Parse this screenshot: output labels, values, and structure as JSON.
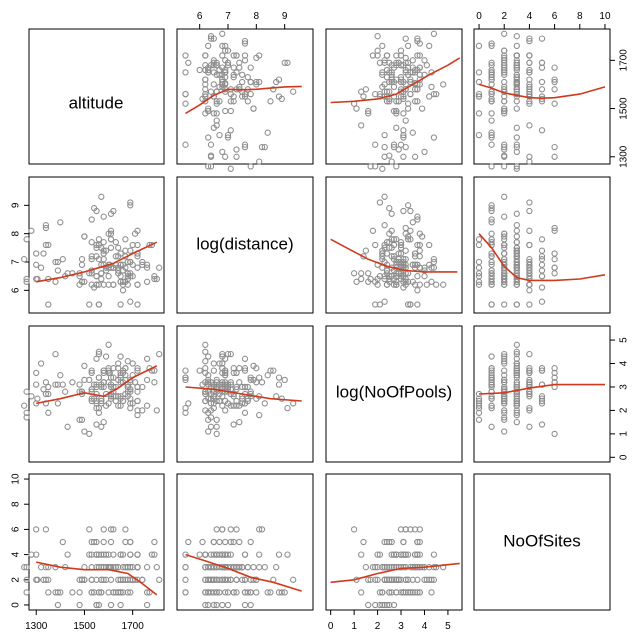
{
  "chart_data": {
    "type": "scatter",
    "subtype": "scatterplot-matrix",
    "variables": [
      "altitude",
      "log(distance)",
      "log(NoOfPools)",
      "NoOfSites"
    ],
    "point_color": "#8f8f8f",
    "smoother_color": "#d03a1c",
    "axes": {
      "altitude": {
        "range": [
          1270,
          1830
        ],
        "ticks": [
          1300,
          1500,
          1700
        ],
        "tick_labels": [
          "1300",
          "1500",
          "1700"
        ]
      },
      "log(distance)": {
        "range": [
          5.2,
          10.0
        ],
        "ticks": [
          6,
          7,
          8,
          9
        ],
        "tick_labels": [
          "6",
          "7",
          "8",
          "9"
        ]
      },
      "log(NoOfPools)": {
        "range": [
          -0.2,
          5.6
        ],
        "ticks": [
          0,
          1,
          2,
          3,
          4,
          5
        ],
        "tick_labels": [
          "0",
          "1",
          "2",
          "3",
          "4",
          "5"
        ]
      },
      "NoOfSites": {
        "range": [
          -0.4,
          10.4
        ],
        "ticks": [
          0,
          2,
          4,
          6,
          8,
          10
        ],
        "tick_labels": [
          "0",
          "2",
          "4",
          "6",
          "8",
          "10"
        ]
      }
    },
    "tick_placement": {
      "top": [
        "log(distance)",
        "NoOfSites"
      ],
      "bottom": [
        "altitude",
        "log(NoOfPools)"
      ],
      "left": [
        "log(distance)",
        "NoOfSites"
      ],
      "right": [
        "altitude",
        "log(NoOfPools)"
      ]
    },
    "smoothers": [
      {
        "x": "log(distance)",
        "y": "altitude",
        "points": [
          [
            5.5,
            1480
          ],
          [
            6.0,
            1515
          ],
          [
            6.5,
            1555
          ],
          [
            7.0,
            1580
          ],
          [
            7.5,
            1578
          ],
          [
            8.0,
            1580
          ],
          [
            8.5,
            1585
          ],
          [
            9.0,
            1590
          ],
          [
            9.6,
            1592
          ]
        ]
      },
      {
        "x": "log(NoOfPools)",
        "y": "altitude",
        "points": [
          [
            0.0,
            1525
          ],
          [
            1.0,
            1530
          ],
          [
            2.0,
            1540
          ],
          [
            2.8,
            1560
          ],
          [
            3.5,
            1600
          ],
          [
            4.2,
            1640
          ],
          [
            5.0,
            1680
          ],
          [
            5.5,
            1710
          ]
        ]
      },
      {
        "x": "NoOfSites",
        "y": "altitude",
        "points": [
          [
            0,
            1600
          ],
          [
            1,
            1585
          ],
          [
            2,
            1565
          ],
          [
            3,
            1555
          ],
          [
            4,
            1545
          ],
          [
            5,
            1543
          ],
          [
            6,
            1545
          ],
          [
            8,
            1560
          ],
          [
            10,
            1590
          ]
        ]
      },
      {
        "x": "altitude",
        "y": "log(distance)",
        "points": [
          [
            1300,
            6.3
          ],
          [
            1400,
            6.45
          ],
          [
            1500,
            6.65
          ],
          [
            1560,
            6.8
          ],
          [
            1620,
            6.95
          ],
          [
            1700,
            7.3
          ],
          [
            1800,
            7.7
          ]
        ]
      },
      {
        "x": "log(NoOfPools)",
        "y": "log(distance)",
        "points": [
          [
            0.0,
            7.8
          ],
          [
            0.8,
            7.45
          ],
          [
            1.6,
            7.1
          ],
          [
            2.4,
            6.85
          ],
          [
            3.2,
            6.7
          ],
          [
            4.0,
            6.65
          ],
          [
            5.0,
            6.65
          ],
          [
            5.4,
            6.65
          ]
        ]
      },
      {
        "x": "NoOfSites",
        "y": "log(distance)",
        "points": [
          [
            0,
            8.0
          ],
          [
            1,
            7.5
          ],
          [
            2,
            6.85
          ],
          [
            3,
            6.45
          ],
          [
            4,
            6.35
          ],
          [
            6,
            6.35
          ],
          [
            8,
            6.4
          ],
          [
            10,
            6.55
          ]
        ]
      },
      {
        "x": "altitude",
        "y": "log(NoOfPools)",
        "points": [
          [
            1300,
            2.3
          ],
          [
            1400,
            2.5
          ],
          [
            1500,
            2.75
          ],
          [
            1580,
            2.6
          ],
          [
            1640,
            2.95
          ],
          [
            1700,
            3.4
          ],
          [
            1800,
            3.9
          ]
        ]
      },
      {
        "x": "log(distance)",
        "y": "log(NoOfPools)",
        "points": [
          [
            5.5,
            3.0
          ],
          [
            6.5,
            2.9
          ],
          [
            7.5,
            2.7
          ],
          [
            8.5,
            2.5
          ],
          [
            9.6,
            2.4
          ]
        ]
      },
      {
        "x": "NoOfSites",
        "y": "log(NoOfPools)",
        "points": [
          [
            0,
            2.7
          ],
          [
            2,
            2.75
          ],
          [
            4,
            2.95
          ],
          [
            6,
            3.1
          ],
          [
            8,
            3.1
          ],
          [
            10,
            3.1
          ]
        ]
      },
      {
        "x": "altitude",
        "y": "NoOfSites",
        "points": [
          [
            1300,
            3.4
          ],
          [
            1400,
            3.0
          ],
          [
            1500,
            2.8
          ],
          [
            1600,
            2.8
          ],
          [
            1680,
            2.5
          ],
          [
            1740,
            1.7
          ],
          [
            1800,
            0.8
          ]
        ]
      },
      {
        "x": "log(distance)",
        "y": "NoOfSites",
        "points": [
          [
            5.5,
            4.0
          ],
          [
            6.2,
            3.5
          ],
          [
            7.0,
            2.9
          ],
          [
            7.8,
            2.2
          ],
          [
            8.6,
            1.8
          ],
          [
            9.6,
            1.1
          ]
        ]
      },
      {
        "x": "log(NoOfPools)",
        "y": "NoOfSites",
        "points": [
          [
            0.0,
            1.8
          ],
          [
            1.0,
            2.0
          ],
          [
            2.0,
            2.5
          ],
          [
            3.0,
            2.9
          ],
          [
            4.0,
            3.0
          ],
          [
            5.0,
            3.2
          ],
          [
            5.5,
            3.3
          ]
        ]
      }
    ],
    "scatter_points": [
      [
        1605,
        6.9,
        3.6,
        3
      ],
      [
        1600,
        6.8,
        3.2,
        3
      ],
      [
        1305,
        6.4,
        2.5,
        2
      ],
      [
        1340,
        8.2,
        3.2,
        6
      ],
      [
        1480,
        6.6,
        1.6,
        0
      ],
      [
        1260,
        7.8,
        2.8,
        1
      ],
      [
        1580,
        7.7,
        3.0,
        3
      ],
      [
        1660,
        6.7,
        2.4,
        2
      ],
      [
        1560,
        5.5,
        2.1,
        1
      ],
      [
        1640,
        7.2,
        2.2,
        1
      ],
      [
        1520,
        6.6,
        1.0,
        6
      ],
      [
        1720,
        7.6,
        3.0,
        4
      ],
      [
        1420,
        6.5,
        2.8,
        3
      ],
      [
        1760,
        6.3,
        3.3,
        1
      ],
      [
        1570,
        9.3,
        2.3,
        2
      ],
      [
        1650,
        6.9,
        3.2,
        4
      ],
      [
        1530,
        8.5,
        3.7,
        1
      ],
      [
        1480,
        6.2,
        2.8,
        2
      ],
      [
        1610,
        8.0,
        2.5,
        2
      ],
      [
        1550,
        7.6,
        4.2,
        2
      ],
      [
        1390,
        7.0,
        2.3,
        0
      ],
      [
        1700,
        6.5,
        4.0,
        2
      ],
      [
        1810,
        6.8,
        4.4,
        2
      ],
      [
        1720,
        7.2,
        3.8,
        3
      ],
      [
        1690,
        6.6,
        2.9,
        2
      ],
      [
        1280,
        8.1,
        2.6,
        4
      ],
      [
        1650,
        5.5,
        3.4,
        1
      ],
      [
        1580,
        7.4,
        1.5,
        3
      ],
      [
        1540,
        6.1,
        3.1,
        5
      ],
      [
        1620,
        6.8,
        3.0,
        6
      ],
      [
        1500,
        6.3,
        1.1,
        2
      ],
      [
        1250,
        7.1,
        2.2,
        3
      ],
      [
        1550,
        6.5,
        2.1,
        0
      ],
      [
        1690,
        5.6,
        2.3,
        5
      ],
      [
        1800,
        6.4,
        2.0,
        3
      ],
      [
        1610,
        6.8,
        3.1,
        3
      ],
      [
        1340,
        7.6,
        2.7,
        2
      ],
      [
        1610,
        7.8,
        2.7,
        0
      ],
      [
        1600,
        6.9,
        3.7,
        3
      ],
      [
        1670,
        7.8,
        3.3,
        2
      ],
      [
        1570,
        6.6,
        3.0,
        4
      ],
      [
        1550,
        7.5,
        2.3,
        3
      ],
      [
        1630,
        7.7,
        2.4,
        3
      ],
      [
        1610,
        8.1,
        3.4,
        6
      ],
      [
        1380,
        6.3,
        3.1,
        1
      ],
      [
        1780,
        7.6,
        3.7,
        4
      ],
      [
        1490,
        6.9,
        2.8,
        2
      ],
      [
        1760,
        6.9,
        4.2,
        3
      ],
      [
        1700,
        6.9,
        3.5,
        3
      ],
      [
        1410,
        7.1,
        3.1,
        5
      ],
      [
        1550,
        8.8,
        3.1,
        4
      ],
      [
        1560,
        7.1,
        4.4,
        4
      ],
      [
        1490,
        7.1,
        2.7,
        2
      ],
      [
        1580,
        6.9,
        3.7,
        5
      ],
      [
        1590,
        6.7,
        2.7,
        4
      ],
      [
        1590,
        7.4,
        2.2,
        3
      ],
      [
        1600,
        6.2,
        4.8,
        3
      ],
      [
        1530,
        7.1,
        2.9,
        2
      ],
      [
        1570,
        7.5,
        2.5,
        3
      ],
      [
        1300,
        6.9,
        3.1,
        4
      ],
      [
        1670,
        6.8,
        3.8,
        6
      ],
      [
        1640,
        6.8,
        3.8,
        3
      ],
      [
        1700,
        7.6,
        2.3,
        2
      ],
      [
        1660,
        6.3,
        3.2,
        2
      ],
      [
        1520,
        5.5,
        3.3,
        4
      ],
      [
        1650,
        6.5,
        2.6,
        2
      ],
      [
        1450,
        6.6,
        3.2,
        1
      ],
      [
        1570,
        6.9,
        3.1,
        1
      ],
      [
        1650,
        7.3,
        2.2,
        1
      ],
      [
        1680,
        6.6,
        3.0,
        3
      ],
      [
        1720,
        7.3,
        2.4,
        2
      ],
      [
        1320,
        6.8,
        4.0,
        3
      ],
      [
        1660,
        6.0,
        3.7,
        4
      ],
      [
        1350,
        7.6,
        3.0,
        1
      ],
      [
        1680,
        6.5,
        2.6,
        2
      ],
      [
        1560,
        7.6,
        1.9,
        0
      ],
      [
        1540,
        8.9,
        2.5,
        1
      ],
      [
        1550,
        7.2,
        1.4,
        5
      ],
      [
        1610,
        7.5,
        3.0,
        3
      ],
      [
        1400,
        8.4,
        3.5,
        1
      ],
      [
        1660,
        6.9,
        2.4,
        3
      ],
      [
        1580,
        7.3,
        3.6,
        3
      ],
      [
        1340,
        8.3,
        2.3,
        3
      ],
      [
        1690,
        9.1,
        2.1,
        4
      ],
      [
        1650,
        6.3,
        2.5,
        0
      ],
      [
        1690,
        9.0,
        3.3,
        1
      ],
      [
        1350,
        6.4,
        2.7,
        3
      ],
      [
        1590,
        6.8,
        4.3,
        2
      ],
      [
        1490,
        6.3,
        2.8,
        2
      ],
      [
        1580,
        8.6,
        3.7,
        2
      ],
      [
        1550,
        6.2,
        2.4,
        0
      ],
      [
        1300,
        6.4,
        2.3,
        2
      ],
      [
        1570,
        6.4,
        1.3,
        1
      ],
      [
        1560,
        7.8,
        3.4,
        1
      ],
      [
        1530,
        6.7,
        2.4,
        5
      ],
      [
        1260,
        6.3,
        1.9,
        3
      ],
      [
        1690,
        6.5,
        2.5,
        5
      ],
      [
        1670,
        7.4,
        3.8,
        5
      ],
      [
        1720,
        8.1,
        1.8,
        3
      ],
      [
        1630,
        7.2,
        2.6,
        1
      ],
      [
        1610,
        8.7,
        2.6,
        3
      ],
      [
        1710,
        8.0,
        3.2,
        2
      ],
      [
        1680,
        6.4,
        3.0,
        3
      ],
      [
        1740,
        6.9,
        2.0,
        2
      ],
      [
        1500,
        7.9,
        3.3,
        2
      ],
      [
        1580,
        7.1,
        3.2,
        6
      ],
      [
        1570,
        6.6,
        2.4,
        2
      ],
      [
        1500,
        7.9,
        3.9,
        3
      ],
      [
        1580,
        6.2,
        3.2,
        4
      ],
      [
        1530,
        6.2,
        2.8,
        4
      ],
      [
        1650,
        6.9,
        3.5,
        2
      ],
      [
        1350,
        5.5,
        1.9,
        2
      ],
      [
        1660,
        6.2,
        3.6,
        1
      ],
      [
        1690,
        7.0,
        2.8,
        4
      ],
      [
        1690,
        7.4,
        3.2,
        3
      ],
      [
        1490,
        6.3,
        1.6,
        2
      ],
      [
        1620,
        6.8,
        2.6,
        3
      ],
      [
        1620,
        6.2,
        3.8,
        4
      ],
      [
        1330,
        7.3,
        2.9,
        2
      ],
      [
        1640,
        6.7,
        4.0,
        3
      ],
      [
        1530,
        6.6,
        2.9,
        2
      ],
      [
        1380,
        7.0,
        4.4,
        3
      ],
      [
        1630,
        6.9,
        3.0,
        3
      ],
      [
        1620,
        6.2,
        2.8,
        1
      ],
      [
        1680,
        6.6,
        2.8,
        3
      ],
      [
        1720,
        5.5,
        3.7,
        3
      ],
      [
        1650,
        6.9,
        3.6,
        4
      ],
      [
        1560,
        6.2,
        4.5,
        3
      ],
      [
        1260,
        6.4,
        1.7,
        2
      ],
      [
        1640,
        7.5,
        2.6,
        2
      ],
      [
        1680,
        6.2,
        4.1,
        2
      ],
      [
        1770,
        7.6,
        3.8,
        1
      ],
      [
        1670,
        6.3,
        3.5,
        3
      ],
      [
        1560,
        5.5,
        3.4,
        3
      ],
      [
        1760,
        6.8,
        2.2,
        0
      ],
      [
        1600,
        6.8,
        3.6,
        4
      ],
      [
        1740,
        7.0,
        3.0,
        2
      ],
      [
        1550,
        6.5,
        3.0,
        4
      ],
      [
        1720,
        6.8,
        2.8,
        4
      ],
      [
        1550,
        6.2,
        2.7,
        4
      ],
      [
        1390,
        6.7,
        3.1,
        1
      ],
      [
        1720,
        6.2,
        2.4,
        3
      ],
      [
        1480,
        6.5,
        3.1,
        1
      ],
      [
        1300,
        7.3,
        3.6,
        6
      ],
      [
        1530,
        7.7,
        2.5,
        1
      ],
      [
        1620,
        8.8,
        3.4,
        1
      ],
      [
        1720,
        7.3,
        3.0,
        3
      ],
      [
        1530,
        7.2,
        3.6,
        3
      ],
      [
        1670,
        7.2,
        2.7,
        3
      ],
      [
        1600,
        8.0,
        3.8,
        1
      ],
      [
        1600,
        6.5,
        2.3,
        3
      ],
      [
        1430,
        6.6,
        1.3,
        4
      ],
      [
        1610,
        7.8,
        2.6,
        5
      ],
      [
        1650,
        6.3,
        4.3,
        1
      ],
      [
        1720,
        6.2,
        2.0,
        4
      ],
      [
        1680,
        7.0,
        3.1,
        1
      ],
      [
        1640,
        6.6,
        3.3,
        1
      ],
      [
        1790,
        6.5,
        3.7,
        5
      ],
      [
        1690,
        7.0,
        2.9,
        3
      ],
      [
        1790,
        6.4,
        3.2,
        4
      ]
    ]
  },
  "diagonal_labels": {
    "altitude": "altitude",
    "log_distance": "log(distance)",
    "log_pools": "log(NoOfPools)",
    "sites": "NoOfSites"
  }
}
